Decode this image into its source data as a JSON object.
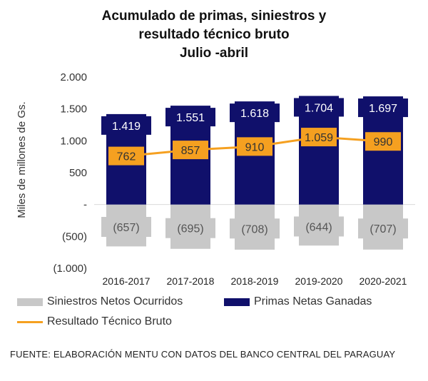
{
  "chart_data": {
    "type": "bar",
    "title": [
      "Acumulado  de primas, siniestros y",
      "resultado técnico bruto",
      "Julio -abril"
    ],
    "ylabel": "Miles de millones de Gs.",
    "ylim": [
      -1000,
      2000
    ],
    "yticks": [
      {
        "value": 2000,
        "label": "2.000"
      },
      {
        "value": 1500,
        "label": "1.500"
      },
      {
        "value": 1000,
        "label": "1.000"
      },
      {
        "value": 500,
        "label": "500"
      },
      {
        "value": 0,
        "label": "-"
      },
      {
        "value": -500,
        "label": "(500)"
      },
      {
        "value": -1000,
        "label": "(1.000)"
      }
    ],
    "categories": [
      "2016-2017",
      "2017-2018",
      "2018-2019",
      "2019-2020",
      "2020-2021"
    ],
    "series": [
      {
        "name": "Siniestros Netos Ocurridos",
        "kind": "bar",
        "color": "#c8c8c8",
        "values": [
          -657,
          -695,
          -708,
          -644,
          -707
        ],
        "labels": [
          "(657)",
          "(695)",
          "(708)",
          "(644)",
          "(707)"
        ]
      },
      {
        "name": "Primas Netas Ganadas",
        "kind": "bar",
        "color": "#10106b",
        "values": [
          1419,
          1551,
          1618,
          1704,
          1697
        ],
        "labels": [
          "1.419",
          "1.551",
          "1.618",
          "1.704",
          "1.697"
        ]
      },
      {
        "name": "Resultado Técnico Bruto",
        "kind": "line",
        "color": "#f5a020",
        "values": [
          762,
          857,
          910,
          1059,
          990
        ],
        "labels": [
          "762",
          "857",
          "910",
          "1.059",
          "990"
        ]
      }
    ],
    "legend": [
      {
        "name": "Siniestros Netos Ocurridos",
        "swatch": "box",
        "color": "#c8c8c8"
      },
      {
        "name": "Primas Netas Ganadas",
        "swatch": "box",
        "color": "#10106b"
      },
      {
        "name": "Resultado Técnico Bruto",
        "swatch": "line",
        "color": "#f5a020"
      }
    ],
    "legend_position": "bottom"
  },
  "source": "FUENTE: ELABORACIÓN MENTU CON DATOS DEL BANCO CENTRAL DEL PARAGUAY"
}
